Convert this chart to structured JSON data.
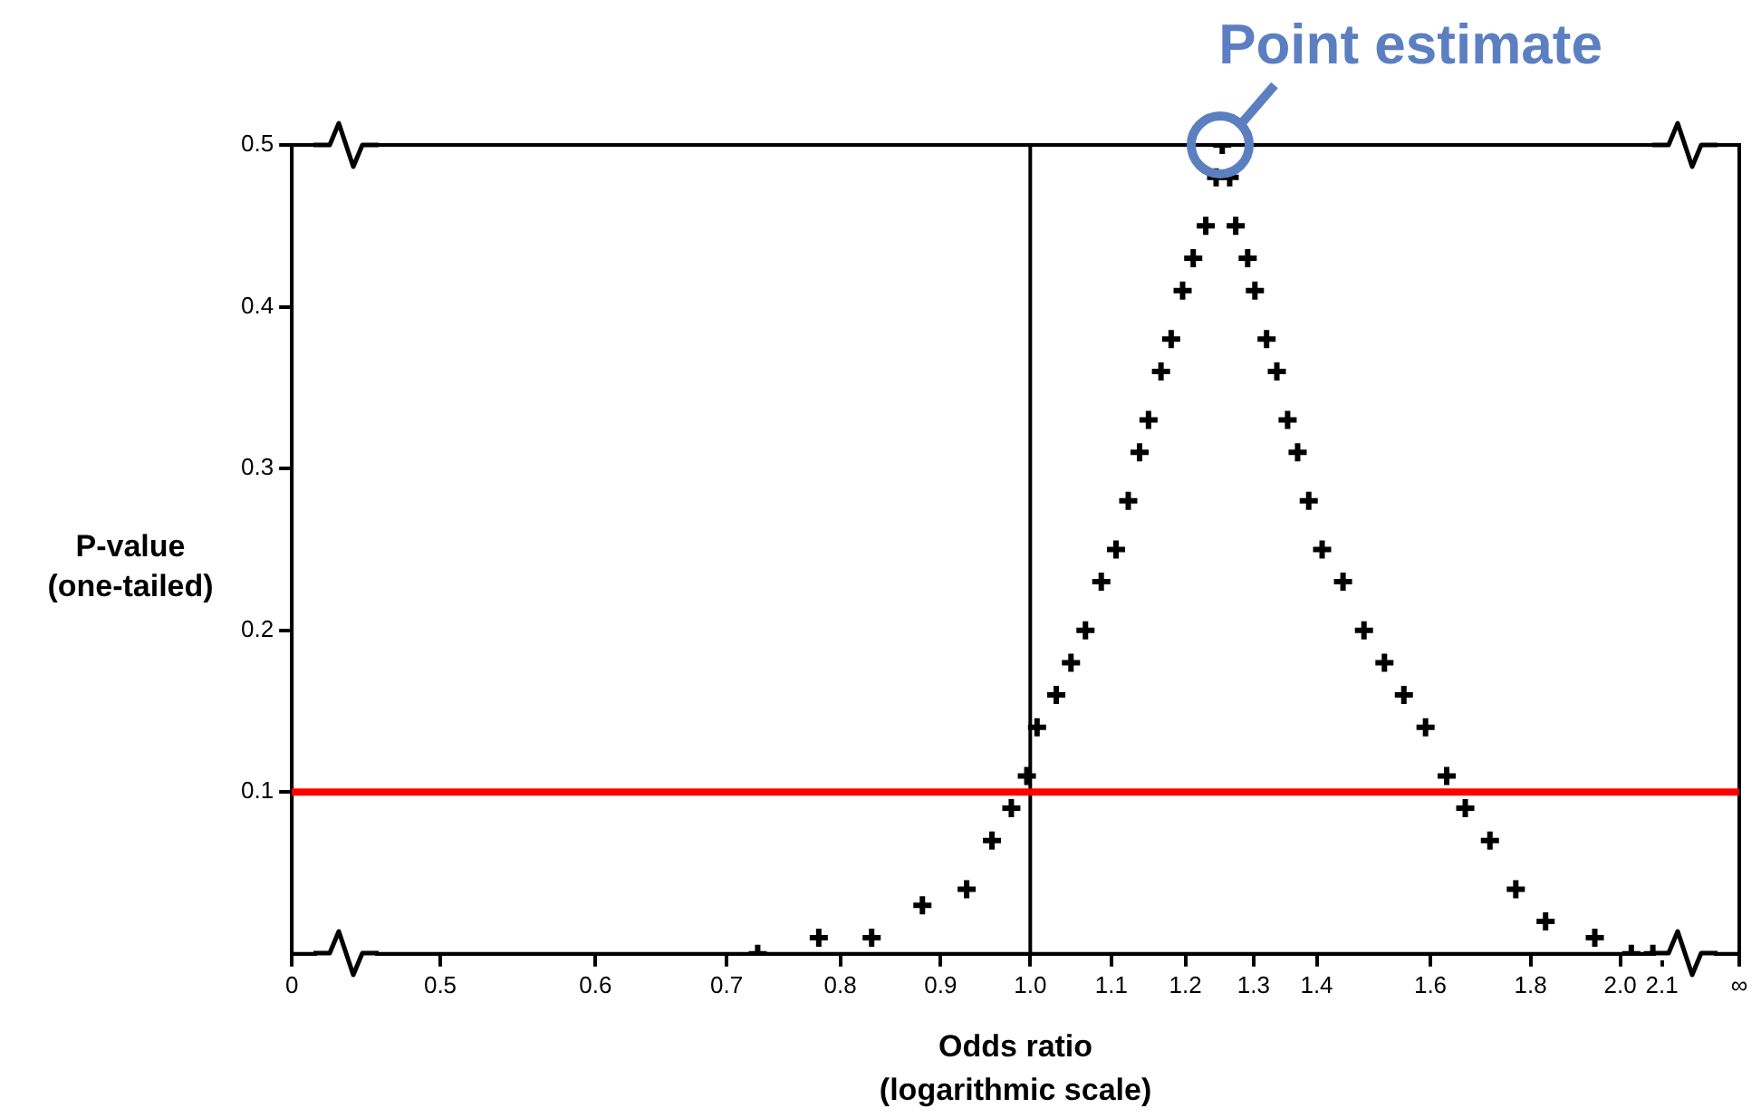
{
  "chart_data": {
    "type": "scatter",
    "xlabel": "Odds ratio\n(logarithmic scale)",
    "ylabel": "P-value\n(one-tailed)",
    "log": "x",
    "xlim": [
      0.42,
      2.3
    ],
    "xticks": [
      {
        "value": 0.42,
        "label": "0"
      },
      0.5,
      0.6,
      0.7,
      0.8,
      0.9,
      {
        "value": 1.0,
        "label": "1.0"
      },
      1.1,
      1.2,
      1.3,
      1.4,
      1.6,
      1.8,
      {
        "value": 2.0,
        "label": "2.0"
      },
      2.1,
      {
        "value": 2.3,
        "label": "∞"
      }
    ],
    "ylim": [
      0,
      0.5
    ],
    "yticks": [
      0.1,
      0.2,
      0.3,
      0.4,
      0.5
    ],
    "grid": false,
    "legend": false,
    "marker": "cross",
    "series": [
      {
        "color": "#000000",
        "x": [
          0.726,
          0.78,
          0.83,
          0.881,
          0.928,
          0.956,
          0.978,
          0.996,
          1.008,
          1.031,
          1.049,
          1.067,
          1.087,
          1.106,
          1.122,
          1.137,
          1.149,
          1.166,
          1.18,
          1.196,
          1.211,
          1.229,
          1.244,
          1.253,
          1.264,
          1.273,
          1.291,
          1.302,
          1.32,
          1.336,
          1.353,
          1.369,
          1.387,
          1.409,
          1.444,
          1.48,
          1.516,
          1.551,
          1.591,
          1.631,
          1.667,
          1.716,
          1.769,
          1.832,
          1.941,
          2.026,
          2.078
        ],
        "values": [
          0.0,
          0.01,
          0.01,
          0.03,
          0.04,
          0.07,
          0.09,
          0.11,
          0.14,
          0.16,
          0.18,
          0.2,
          0.23,
          0.25,
          0.28,
          0.31,
          0.33,
          0.36,
          0.38,
          0.41,
          0.43,
          0.45,
          0.48,
          0.5,
          0.48,
          0.45,
          0.43,
          0.41,
          0.38,
          0.36,
          0.33,
          0.31,
          0.28,
          0.25,
          0.23,
          0.2,
          0.18,
          0.16,
          0.14,
          0.11,
          0.09,
          0.07,
          0.04,
          0.02,
          0.01,
          0.0,
          0.0
        ]
      }
    ],
    "ref_lines": [
      {
        "axis": "x",
        "value": 1.0,
        "color": "#000000"
      },
      {
        "axis": "y",
        "value": 0.1,
        "color": "#ff0000"
      }
    ],
    "annotations": [
      {
        "text": "Point estimate",
        "x": 1.25,
        "y": 0.5
      }
    ]
  }
}
